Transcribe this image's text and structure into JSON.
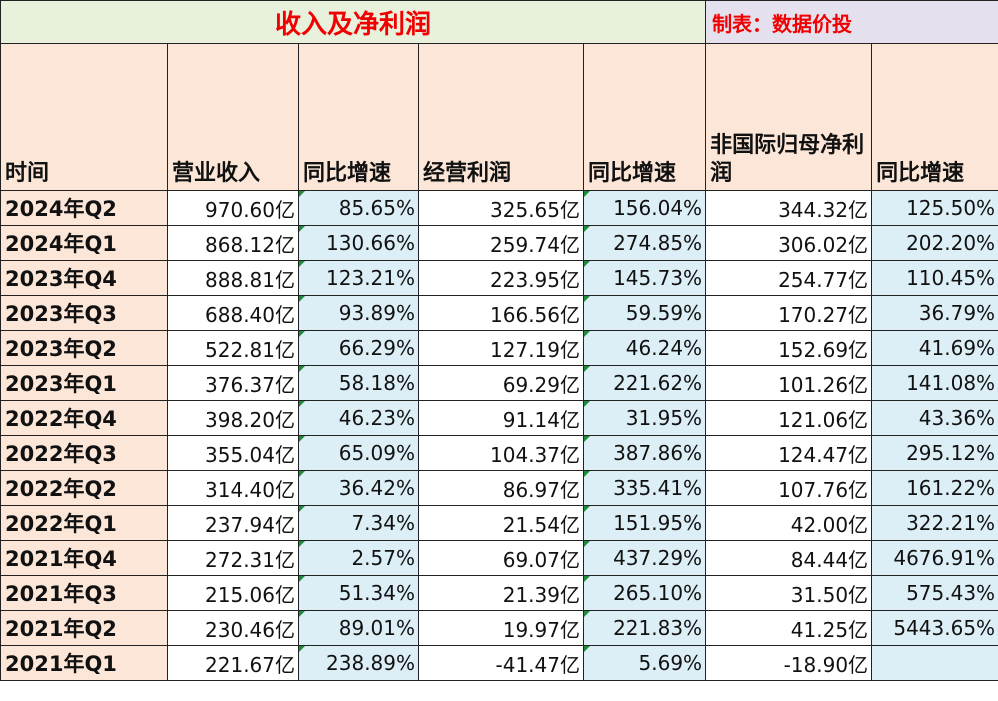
{
  "title": "收入及净利润",
  "credit": "制表：数据价投",
  "headers": {
    "time": "时间",
    "revenue": "营业收入",
    "revenue_yoy": "同比增速",
    "op_profit": "经营利润",
    "op_profit_yoy": "同比增速",
    "net_profit": "非国际归母净利润",
    "net_profit_yoy": "同比增速"
  },
  "rows": [
    {
      "time": "2024年Q2",
      "revenue": "970.60亿",
      "revenue_yoy": "85.65%",
      "op_profit": "325.65亿",
      "op_profit_yoy": "156.04%",
      "net_profit": "344.32亿",
      "net_profit_yoy": "125.50%"
    },
    {
      "time": "2024年Q1",
      "revenue": "868.12亿",
      "revenue_yoy": "130.66%",
      "op_profit": "259.74亿",
      "op_profit_yoy": "274.85%",
      "net_profit": "306.02亿",
      "net_profit_yoy": "202.20%"
    },
    {
      "time": "2023年Q4",
      "revenue": "888.81亿",
      "revenue_yoy": "123.21%",
      "op_profit": "223.95亿",
      "op_profit_yoy": "145.73%",
      "net_profit": "254.77亿",
      "net_profit_yoy": "110.45%"
    },
    {
      "time": "2023年Q3",
      "revenue": "688.40亿",
      "revenue_yoy": "93.89%",
      "op_profit": "166.56亿",
      "op_profit_yoy": "59.59%",
      "net_profit": "170.27亿",
      "net_profit_yoy": "36.79%"
    },
    {
      "time": "2023年Q2",
      "revenue": "522.81亿",
      "revenue_yoy": "66.29%",
      "op_profit": "127.19亿",
      "op_profit_yoy": "46.24%",
      "net_profit": "152.69亿",
      "net_profit_yoy": "41.69%"
    },
    {
      "time": "2023年Q1",
      "revenue": "376.37亿",
      "revenue_yoy": "58.18%",
      "op_profit": "69.29亿",
      "op_profit_yoy": "221.62%",
      "net_profit": "101.26亿",
      "net_profit_yoy": "141.08%"
    },
    {
      "time": "2022年Q4",
      "revenue": "398.20亿",
      "revenue_yoy": "46.23%",
      "op_profit": "91.14亿",
      "op_profit_yoy": "31.95%",
      "net_profit": "121.06亿",
      "net_profit_yoy": "43.36%"
    },
    {
      "time": "2022年Q3",
      "revenue": "355.04亿",
      "revenue_yoy": "65.09%",
      "op_profit": "104.37亿",
      "op_profit_yoy": "387.86%",
      "net_profit": "124.47亿",
      "net_profit_yoy": "295.12%"
    },
    {
      "time": "2022年Q2",
      "revenue": "314.40亿",
      "revenue_yoy": "36.42%",
      "op_profit": "86.97亿",
      "op_profit_yoy": "335.41%",
      "net_profit": "107.76亿",
      "net_profit_yoy": "161.22%"
    },
    {
      "time": "2022年Q1",
      "revenue": "237.94亿",
      "revenue_yoy": "7.34%",
      "op_profit": "21.54亿",
      "op_profit_yoy": "151.95%",
      "net_profit": "42.00亿",
      "net_profit_yoy": "322.21%"
    },
    {
      "time": "2021年Q4",
      "revenue": "272.31亿",
      "revenue_yoy": "2.57%",
      "op_profit": "69.07亿",
      "op_profit_yoy": "437.29%",
      "net_profit": "84.44亿",
      "net_profit_yoy": "4676.91%"
    },
    {
      "time": "2021年Q3",
      "revenue": "215.06亿",
      "revenue_yoy": "51.34%",
      "op_profit": "21.39亿",
      "op_profit_yoy": "265.10%",
      "net_profit": "31.50亿",
      "net_profit_yoy": "575.43%"
    },
    {
      "time": "2021年Q2",
      "revenue": "230.46亿",
      "revenue_yoy": "89.01%",
      "op_profit": "19.97亿",
      "op_profit_yoy": "221.83%",
      "net_profit": "41.25亿",
      "net_profit_yoy": "5443.65%"
    },
    {
      "time": "2021年Q1",
      "revenue": "221.67亿",
      "revenue_yoy": "238.89%",
      "op_profit": "-41.47亿",
      "op_profit_yoy": "5.69%",
      "net_profit": "-18.90亿",
      "net_profit_yoy": ""
    }
  ]
}
